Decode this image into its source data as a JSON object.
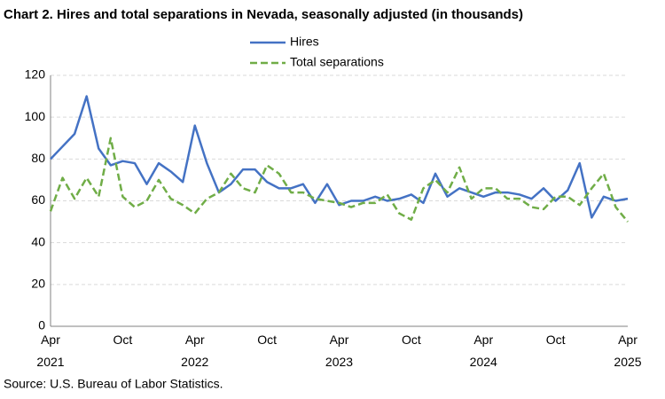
{
  "chart_data": {
    "type": "line",
    "title": "Chart 2. Hires and total separations in Nevada, seasonally adjusted (in thousands)",
    "source": "Source: U.S. Bureau of Labor Statistics.",
    "categories": [
      "Apr 2021",
      null,
      null,
      null,
      null,
      null,
      "Oct",
      null,
      null,
      null,
      null,
      null,
      "Apr 2022",
      null,
      null,
      null,
      null,
      null,
      "Oct",
      null,
      null,
      null,
      null,
      null,
      "Apr 2023",
      null,
      null,
      null,
      null,
      null,
      "Oct",
      null,
      null,
      null,
      null,
      null,
      "Apr 2024",
      null,
      null,
      null,
      null,
      null,
      "Oct",
      null,
      null,
      null,
      null,
      null,
      "Apr 2025"
    ],
    "series": [
      {
        "name": "Hires",
        "color": "#4472c4",
        "dash": false,
        "values": [
          80,
          86,
          92,
          110,
          85,
          77,
          79,
          78,
          68,
          78,
          74,
          69,
          96,
          78,
          64,
          68,
          75,
          75,
          69,
          66,
          66,
          68,
          59,
          68,
          58,
          60,
          60,
          62,
          60,
          61,
          63,
          59,
          73,
          62,
          66,
          64,
          62,
          64,
          64,
          63,
          61,
          66,
          60,
          65,
          78,
          52,
          62,
          60,
          61
        ]
      },
      {
        "name": "Total separations",
        "color": "#70ad47",
        "dash": true,
        "values": [
          55,
          71,
          61,
          71,
          62,
          90,
          62,
          57,
          60,
          70,
          61,
          58,
          54,
          61,
          64,
          73,
          66,
          64,
          77,
          73,
          64,
          64,
          61,
          60,
          59,
          57,
          59,
          59,
          63,
          54,
          51,
          66,
          70,
          64,
          76,
          61,
          66,
          66,
          61,
          61,
          57,
          56,
          62,
          62,
          58,
          66,
          73,
          57,
          50
        ]
      }
    ],
    "ylim": [
      0,
      120
    ],
    "yticks": [
      0,
      20,
      40,
      60,
      80,
      100,
      120
    ],
    "grid": true
  }
}
